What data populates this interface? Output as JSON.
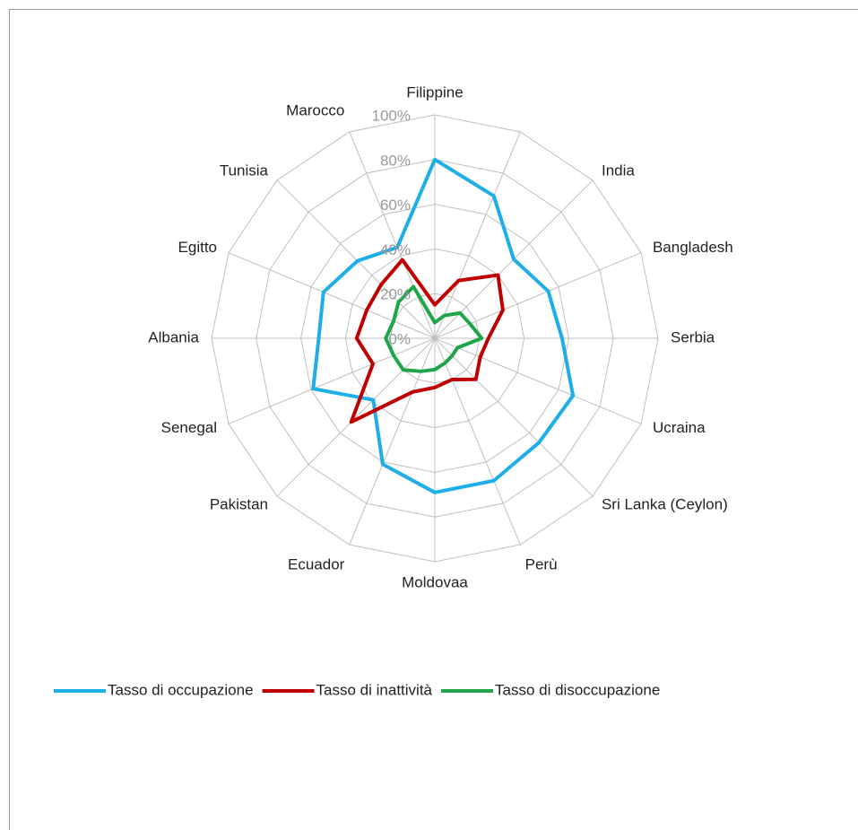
{
  "chart_data": {
    "type": "radar",
    "categories": [
      "Filippine",
      null,
      "India",
      "Bangladesh",
      "Serbia",
      "Ucraina",
      "Sri Lanka (Ceylon)",
      "Perù",
      "Moldovaa",
      "Ecuador",
      "Pakistan",
      "Senegal",
      "Albania",
      "Egitto",
      "Tunisia",
      "Marocco"
    ],
    "series": [
      {
        "name": "Tasso di occupazione",
        "color": "#1eaee8",
        "values": [
          80,
          69,
          50,
          55,
          57,
          67,
          66,
          69,
          69,
          61,
          39,
          59,
          52,
          54,
          49,
          44
        ]
      },
      {
        "name": "Tasso di inattività",
        "color": "#c00000",
        "values": [
          15,
          28,
          40,
          33,
          24,
          22,
          26,
          20,
          22,
          26,
          53,
          30,
          35,
          33,
          34,
          38
        ]
      },
      {
        "name": "Tasso di disoccupazione",
        "color": "#1fa64a",
        "values": [
          7,
          11,
          16,
          17,
          21,
          11,
          11,
          12,
          14,
          16,
          20,
          20,
          22,
          20,
          23,
          25
        ]
      }
    ],
    "ylim": [
      0,
      100
    ],
    "yticks": [
      {
        "value": 0,
        "label": "0%"
      },
      {
        "value": 20,
        "label": "20%"
      },
      {
        "value": 40,
        "label": "40%"
      },
      {
        "value": 60,
        "label": "60%"
      },
      {
        "value": 80,
        "label": "80%"
      },
      {
        "value": 100,
        "label": "100%"
      }
    ],
    "grid": true,
    "legend": "bottom"
  }
}
